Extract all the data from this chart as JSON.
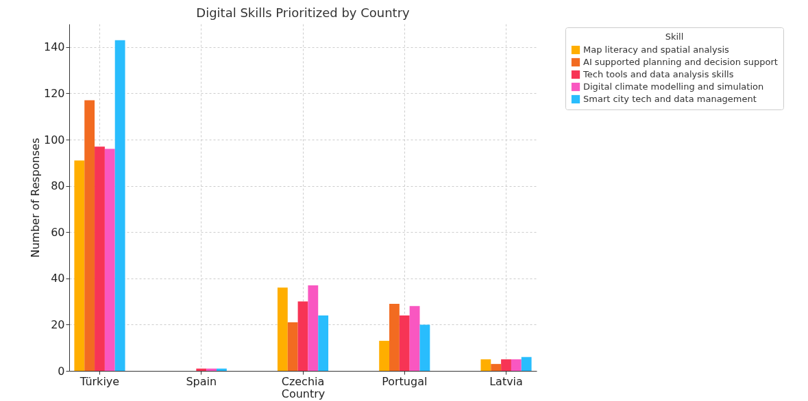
{
  "chart_data": {
    "type": "bar",
    "title": "Digital Skills Prioritized by Country",
    "xlabel": "Country",
    "ylabel": "Number of Responses",
    "legend_title": "Skill",
    "categories": [
      "Türkiye",
      "Spain",
      "Czechia",
      "Portugal",
      "Latvia"
    ],
    "series": [
      {
        "name": "Map literacy and spatial analysis",
        "color": "#ffae00",
        "values": [
          91,
          0,
          36,
          13,
          5
        ]
      },
      {
        "name": "AI supported planning and decision support",
        "color": "#f26b21",
        "values": [
          117,
          0,
          21,
          29,
          3
        ]
      },
      {
        "name": "Tech tools and data analysis skills",
        "color": "#f73455",
        "values": [
          97,
          1,
          30,
          24,
          5
        ]
      },
      {
        "name": "Digital climate modelling and simulation",
        "color": "#f957c1",
        "values": [
          96,
          1,
          37,
          28,
          5
        ]
      },
      {
        "name": "Smart city tech and data management",
        "color": "#29bdfd",
        "values": [
          143,
          1,
          24,
          20,
          6
        ]
      }
    ],
    "ylim": [
      0,
      150
    ],
    "yticks": [
      0,
      20,
      40,
      60,
      80,
      100,
      120,
      140
    ],
    "grid": true,
    "legend": "top right"
  }
}
